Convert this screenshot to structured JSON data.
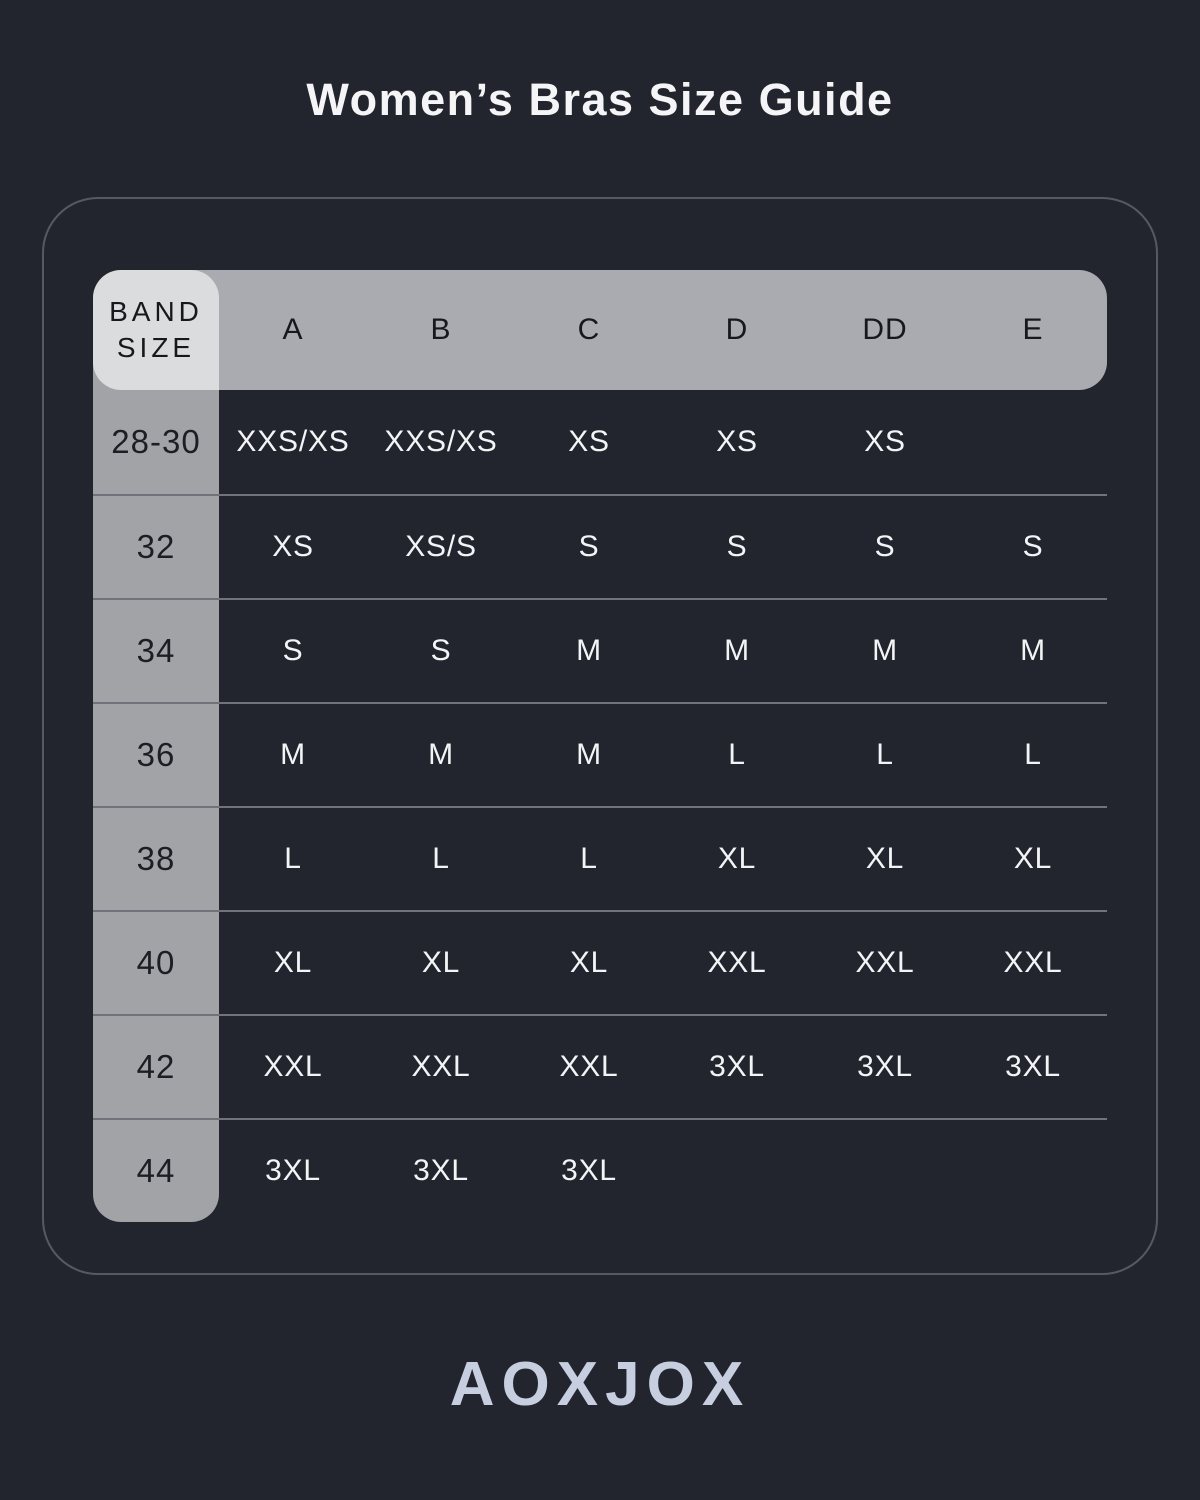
{
  "page_title": "Women’s Bras Size Guide",
  "brand_logo": "AOXJOX",
  "colors": {
    "background": "#23252e",
    "card_border": "#565963",
    "header_row_bg": "#a9abb0",
    "band_column_overlay": "rgba(255,255,255,0.58)",
    "header_text": "#17181d",
    "band_text": "#1c1e24",
    "size_text": "#f3f4f6",
    "row_divider": "#70737c",
    "title_text": "#f5f5f7",
    "logo_text": "#c7cee0"
  },
  "chart_data": {
    "type": "table",
    "title": "Women’s Bras Size Guide",
    "corner_header": {
      "line1": "BAND",
      "line2": "SIZE"
    },
    "columns": [
      "A",
      "B",
      "C",
      "D",
      "DD",
      "E"
    ],
    "rows": [
      {
        "band": "28-30",
        "sizes": [
          "XXS/XS",
          "XXS/XS",
          "XS",
          "XS",
          "XS",
          ""
        ]
      },
      {
        "band": "32",
        "sizes": [
          "XS",
          "XS/S",
          "S",
          "S",
          "S",
          "S"
        ]
      },
      {
        "band": "34",
        "sizes": [
          "S",
          "S",
          "M",
          "M",
          "M",
          "M"
        ]
      },
      {
        "band": "36",
        "sizes": [
          "M",
          "M",
          "M",
          "L",
          "L",
          "L"
        ]
      },
      {
        "band": "38",
        "sizes": [
          "L",
          "L",
          "L",
          "XL",
          "XL",
          "XL"
        ]
      },
      {
        "band": "40",
        "sizes": [
          "XL",
          "XL",
          "XL",
          "XXL",
          "XXL",
          "XXL"
        ]
      },
      {
        "band": "42",
        "sizes": [
          "XXL",
          "XXL",
          "XXL",
          "3XL",
          "3XL",
          "3XL"
        ]
      },
      {
        "band": "44",
        "sizes": [
          "3XL",
          "3XL",
          "3XL",
          "",
          "",
          ""
        ]
      }
    ]
  }
}
